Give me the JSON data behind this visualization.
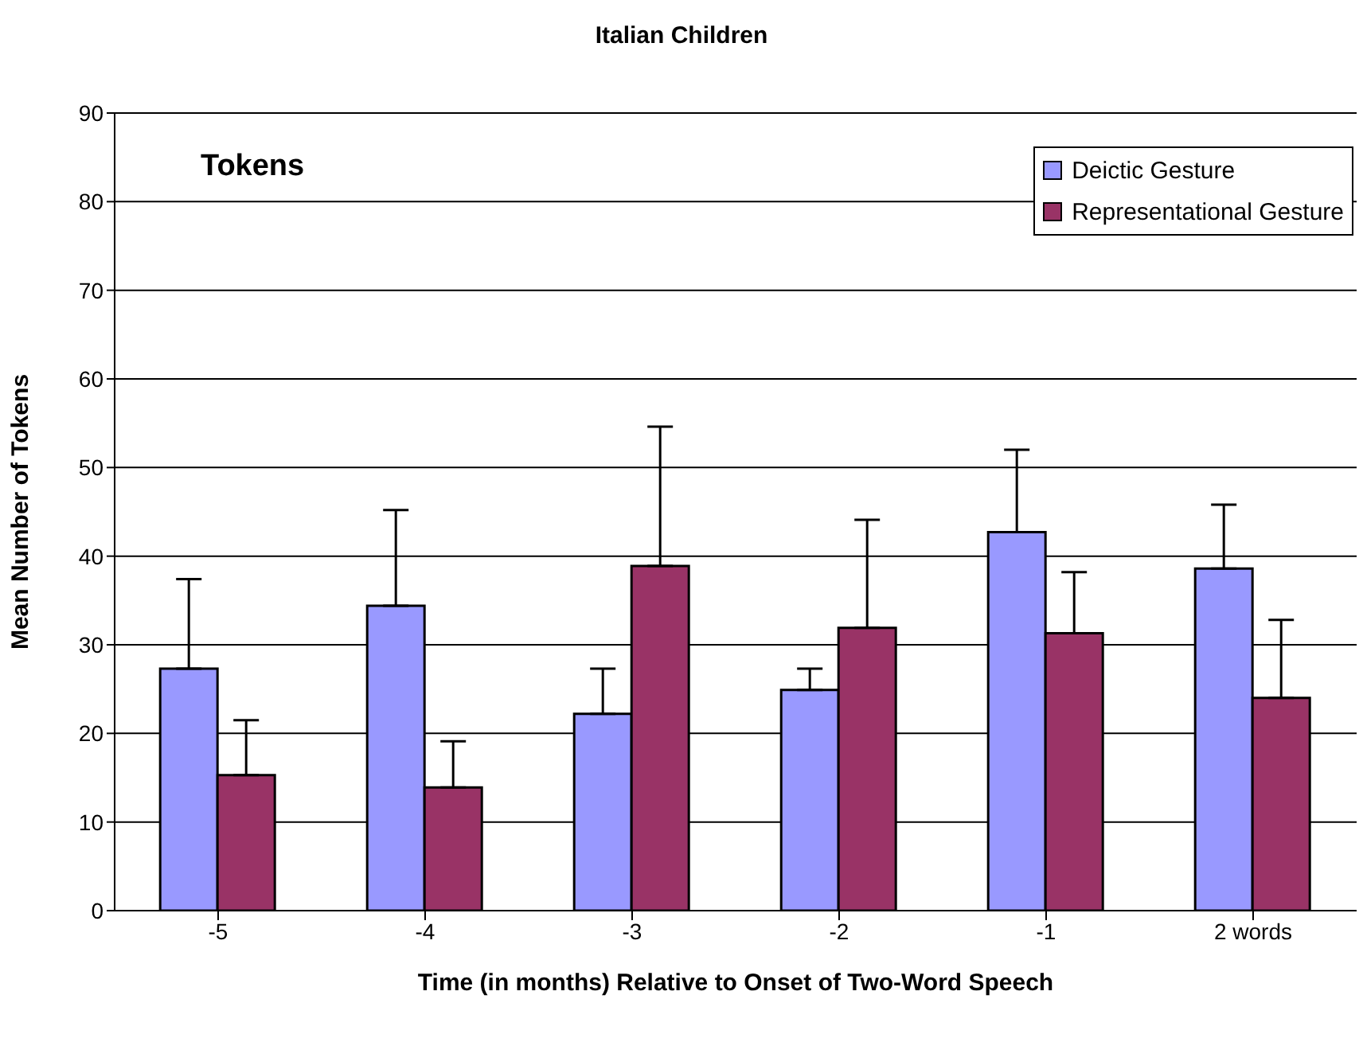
{
  "chart_data": {
    "type": "bar",
    "title": "Italian Children",
    "xlabel": "Time (in months) Relative to Onset of Two-Word Speech",
    "ylabel": "Mean Number of Tokens",
    "categories": [
      "-5",
      "-4",
      "-3",
      "-2",
      "-1",
      "2 words"
    ],
    "series": [
      {
        "name": "Deictic Gesture",
        "color": "#9999ff",
        "values": [
          27.3,
          34.4,
          22.2,
          24.9,
          42.7,
          38.6
        ],
        "errors": [
          [
            27.3,
            37.4
          ],
          [
            34.4,
            45.2
          ],
          [
            22.2,
            27.3
          ],
          [
            24.9,
            27.3
          ],
          [
            42.7,
            52.0
          ],
          [
            38.6,
            45.8
          ]
        ]
      },
      {
        "name": "Representational Gesture",
        "color": "#993366",
        "values": [
          15.3,
          13.9,
          38.9,
          31.9,
          31.3,
          24.0
        ],
        "errors": [
          [
            15.3,
            21.5
          ],
          [
            13.9,
            19.1
          ],
          [
            38.9,
            54.6
          ],
          [
            31.9,
            44.1
          ],
          [
            31.3,
            38.2
          ],
          [
            24.0,
            32.8
          ]
        ]
      }
    ],
    "ylim": [
      0,
      90
    ],
    "yticks": [
      0,
      10,
      20,
      30,
      40,
      50,
      60,
      70,
      80,
      90
    ],
    "grid": "y",
    "legend": "top right",
    "annotations": [
      "Tokens"
    ]
  }
}
